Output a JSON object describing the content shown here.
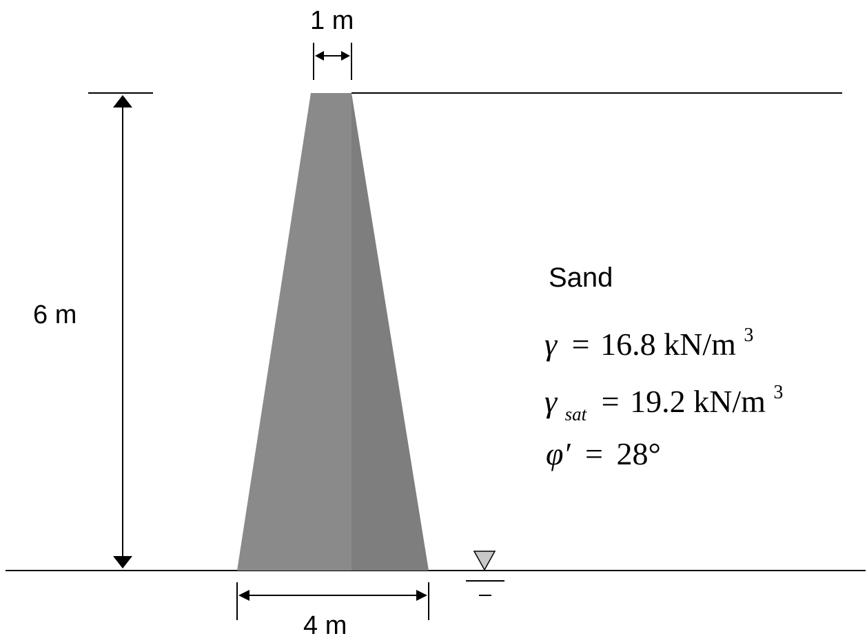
{
  "dimensions": {
    "top_width": "1 m",
    "height": "6 m",
    "base_width": "4 m"
  },
  "soil": {
    "name": "Sand",
    "unit_weight": {
      "symbol": "γ",
      "equals": "=",
      "value": "16.8 kN/m",
      "exponent": "3"
    },
    "saturated_unit_weight": {
      "symbol": "γ",
      "subscript": "sat",
      "equals": "=",
      "value": "19.2 kN/m",
      "exponent": "3"
    },
    "friction_angle": {
      "symbol": "φ′",
      "equals": "=",
      "value": "28°"
    }
  },
  "colors": {
    "wall_left": "#8a8a8a",
    "wall_right": "#7e7e7e",
    "water_marker": "#c8c8c8",
    "line": "#000000"
  }
}
